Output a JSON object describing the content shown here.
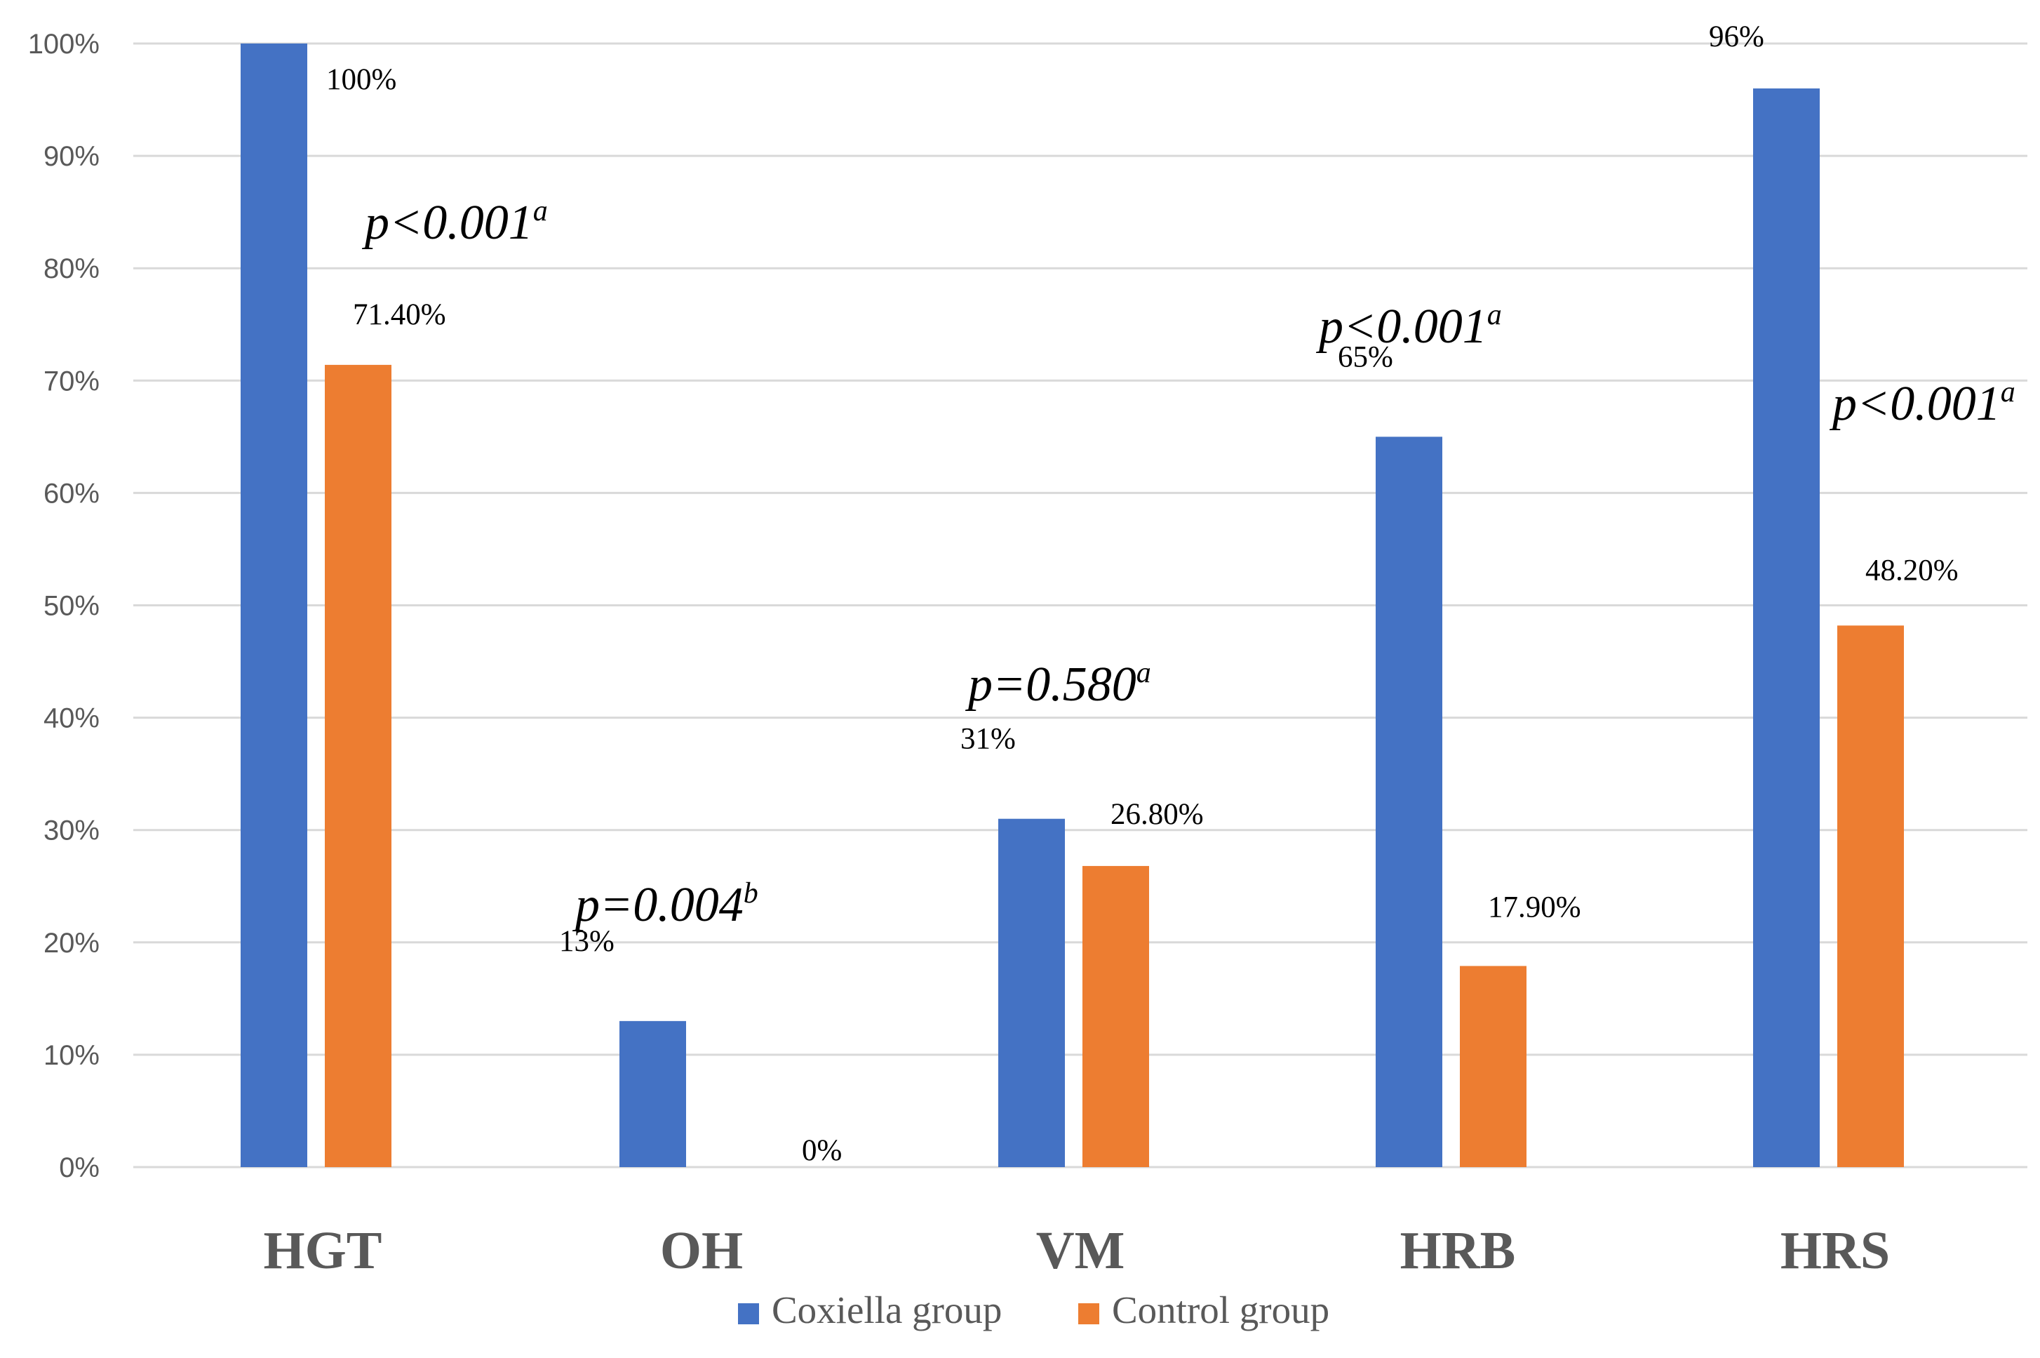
{
  "chart_data": {
    "type": "bar",
    "categories": [
      "HGT",
      "OH",
      "VM",
      "HRB",
      "HRS"
    ],
    "series": [
      {
        "name": "Coxiella group",
        "color": "#4472C4",
        "values": [
          100,
          13,
          31,
          65,
          96
        ],
        "labels": [
          "100%",
          "13%",
          "31%",
          "65%",
          "96%"
        ]
      },
      {
        "name": "Control group",
        "color": "#ED7D31",
        "values": [
          71.4,
          0,
          26.8,
          17.9,
          48.2
        ],
        "labels": [
          "71.40%",
          "0%",
          "26.80%",
          "17.90%",
          "48.20%"
        ]
      }
    ],
    "ylim": [
      0,
      100
    ],
    "yticks": [
      "0%",
      "10%",
      "20%",
      "30%",
      "40%",
      "50%",
      "60%",
      "70%",
      "80%",
      "90%",
      "100%"
    ],
    "annotations": [
      {
        "category": "HGT",
        "text": "p<0.001",
        "sup": "a"
      },
      {
        "category": "OH",
        "text": "p=0.004",
        "sup": "b"
      },
      {
        "category": "VM",
        "text": "p=0.580",
        "sup": "a"
      },
      {
        "category": "HRB",
        "text": "p<0.001",
        "sup": "a"
      },
      {
        "category": "HRS",
        "text": "p<0.001",
        "sup": "a"
      }
    ],
    "legend_position": "bottom",
    "grid": true
  }
}
